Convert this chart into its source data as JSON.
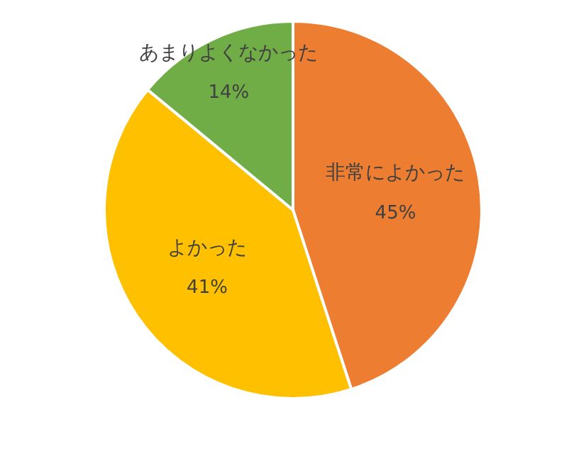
{
  "chart_data": {
    "type": "pie",
    "categories": [
      "非常によかった",
      "よかった",
      "あまりよくなかった"
    ],
    "values": [
      45,
      41,
      14
    ],
    "colors": [
      "#ed7d31",
      "#ffc000",
      "#70ad47"
    ],
    "value_labels": [
      "45%",
      "41%",
      "14%"
    ],
    "legend": false
  }
}
